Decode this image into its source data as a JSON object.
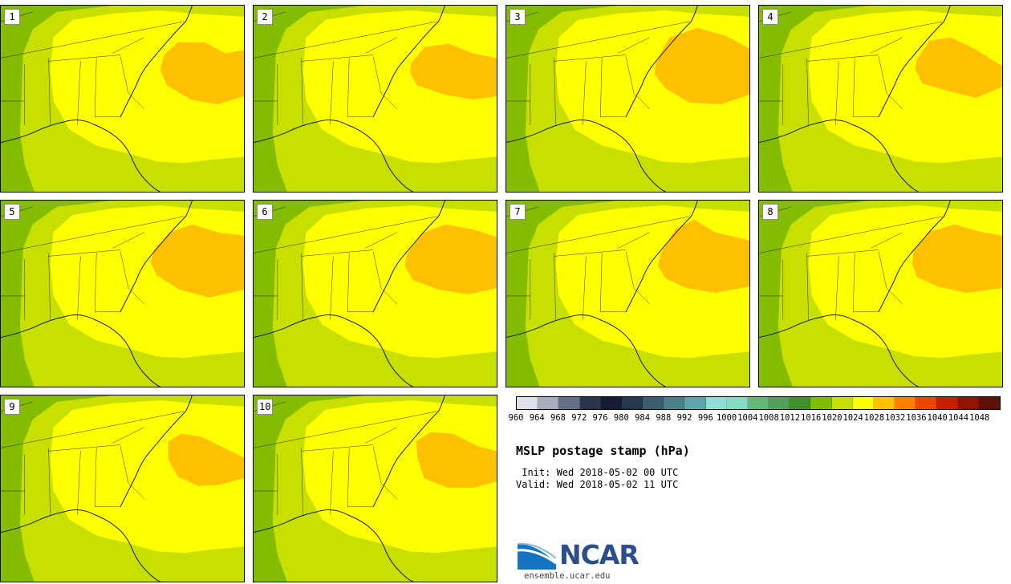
{
  "title": "MSLP postage stamp (hPa)",
  "init_label": " Init: Wed 2018-05-02 00 UTC",
  "valid_label": "Valid: Wed 2018-05-02 11 UTC",
  "logo": {
    "name": "NCAR",
    "url": "ensemble.ucar.edu"
  },
  "members": [
    "1",
    "2",
    "3",
    "4",
    "5",
    "6",
    "7",
    "8",
    "9",
    "10"
  ],
  "colorbar": {
    "ticks": [
      "960",
      "964",
      "968",
      "972",
      "976",
      "980",
      "984",
      "988",
      "992",
      "996",
      "1000",
      "1004",
      "1008",
      "1012",
      "1016",
      "1020",
      "1024",
      "1028",
      "1032",
      "1036",
      "1040",
      "1044",
      "1048"
    ],
    "colors": [
      "#e0e0e8",
      "#a8acbc",
      "#646e84",
      "#2a344e",
      "#161c34",
      "#24384e",
      "#3c5c72",
      "#4c8088",
      "#5fa4a8",
      "#8ee0d4",
      "#84dcc4",
      "#64b87c",
      "#54a058",
      "#40902c",
      "#80bc00",
      "#c8e000",
      "#ffff00",
      "#ffc000",
      "#ff8000",
      "#e84800",
      "#c02000",
      "#901400",
      "#5c1008"
    ]
  },
  "map_colors": {
    "dark_green": "#84bc00",
    "mid_green": "#c8e000",
    "yellow": "#ffff00",
    "orange": "#ffc000"
  }
}
